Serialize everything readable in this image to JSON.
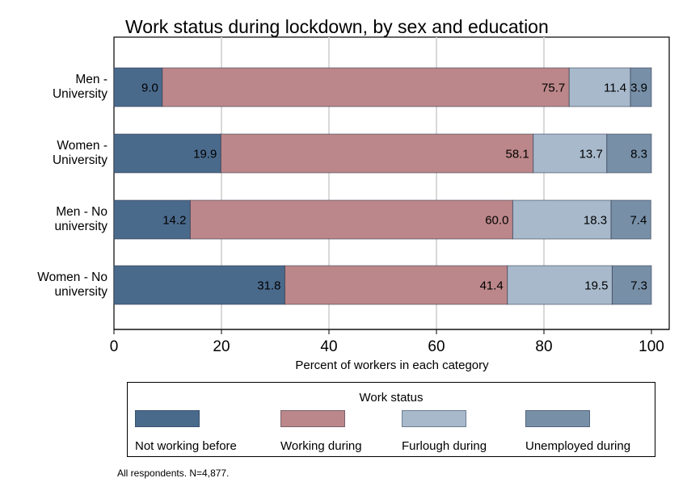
{
  "title": "Work status during lockdown, by sex and education",
  "note": "All respondents. N=4,877.",
  "colors": {
    "not_working_before": "#4a6a8c",
    "working_during": "#bc878a",
    "furlough_during": "#a7b9cb",
    "unemployed_during": "#7790a8",
    "grid": "#d9d9d9"
  },
  "chart_data": {
    "type": "bar",
    "orientation": "horizontal",
    "stacked": true,
    "title": "Work status during lockdown, by sex and education",
    "xlabel": "Percent of workers in each category",
    "ylabel": "",
    "xlim": [
      0,
      100
    ],
    "xticks": [
      "0",
      "20",
      "40",
      "60",
      "80",
      "100"
    ],
    "grid": true,
    "categories": [
      [
        "Men -",
        "University"
      ],
      [
        "Women -",
        "University"
      ],
      [
        "Men - No",
        "university"
      ],
      [
        "Women - No",
        "university"
      ]
    ],
    "series": [
      {
        "name": "Not working before",
        "values": [
          9.0,
          19.9,
          14.2,
          31.8
        ],
        "labels": [
          "9.0",
          "19.9",
          "14.2",
          "31.8"
        ]
      },
      {
        "name": "Working during",
        "values": [
          75.7,
          58.1,
          60.0,
          41.4
        ],
        "labels": [
          "75.7",
          "58.1",
          "60.0",
          "41.4"
        ]
      },
      {
        "name": "Furlough during",
        "values": [
          11.4,
          13.7,
          18.3,
          19.5
        ],
        "labels": [
          "11.4",
          "13.7",
          "18.3",
          "19.5"
        ]
      },
      {
        "name": "Unemployed during",
        "values": [
          3.9,
          8.3,
          7.4,
          7.3
        ],
        "labels": [
          "3.9",
          "8.3",
          "7.4",
          "7.3"
        ]
      }
    ],
    "legend": {
      "title": "Work status",
      "placement": "bottom"
    }
  }
}
